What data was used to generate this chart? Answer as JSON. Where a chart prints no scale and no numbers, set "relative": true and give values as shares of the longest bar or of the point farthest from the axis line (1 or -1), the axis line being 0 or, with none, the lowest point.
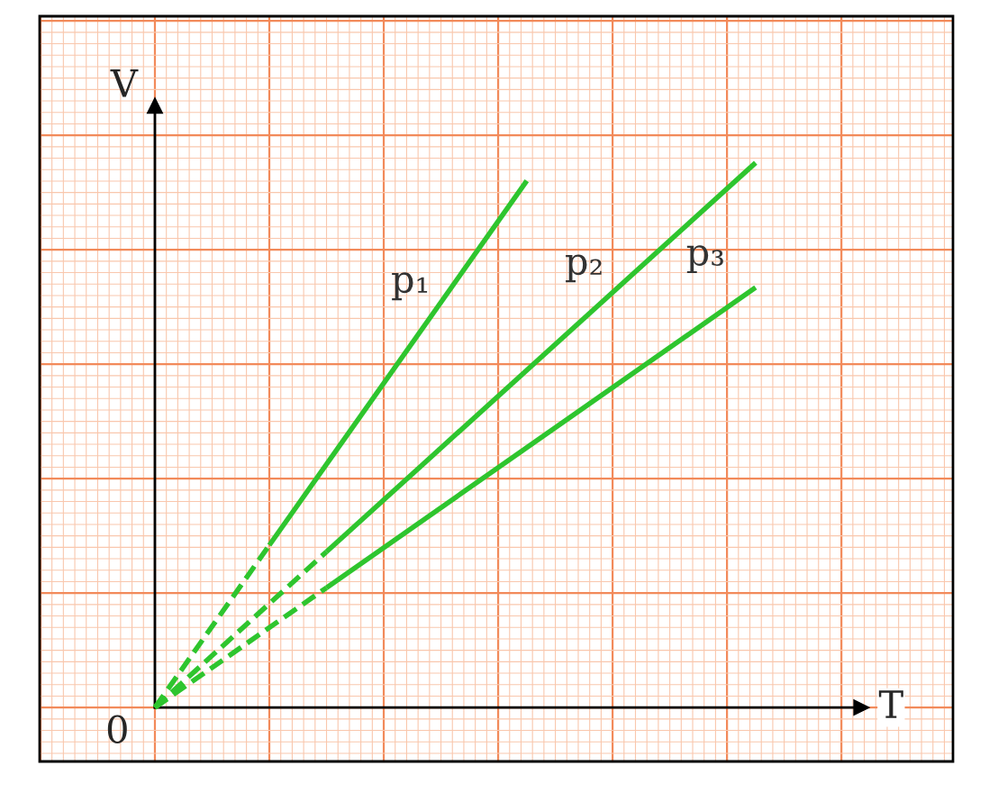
{
  "chart_data": {
    "type": "line",
    "relative": true,
    "xlabel": "T",
    "ylabel": "V",
    "grid": true,
    "legend": false,
    "annotations": [
      "0"
    ],
    "categories": [
      null,
      null,
      null,
      null,
      null,
      null,
      null,
      null,
      null,
      null,
      null,
      null,
      null,
      null,
      null,
      null,
      null,
      null,
      null,
      null,
      null,
      null
    ],
    "series": [
      {
        "color": "#2ec52e",
        "line_style": "dashed",
        "values": [
          0,
          null,
          null,
          null,
          0.298,
          null,
          null,
          null,
          null,
          null,
          null,
          null,
          null,
          null,
          null,
          null,
          null,
          null,
          null,
          null,
          null,
          null
        ]
      },
      {
        "name": "p₁",
        "color": "#2ec52e",
        "line_style": "solid",
        "values": [
          null,
          null,
          null,
          null,
          0.298,
          null,
          null,
          null,
          null,
          null,
          null,
          null,
          null,
          0.967,
          null,
          null,
          null,
          null,
          null,
          null,
          null,
          null
        ]
      },
      {
        "color": "#2ec52e",
        "line_style": "dashed",
        "values": [
          0,
          null,
          null,
          null,
          null,
          null,
          0.286,
          null,
          null,
          null,
          null,
          null,
          null,
          null,
          null,
          null,
          null,
          null,
          null,
          null,
          null,
          null
        ]
      },
      {
        "name": "p₂",
        "color": "#2ec52e",
        "line_style": "solid",
        "values": [
          null,
          null,
          null,
          null,
          null,
          null,
          0.286,
          null,
          null,
          null,
          null,
          null,
          null,
          null,
          null,
          null,
          null,
          null,
          null,
          null,
          null,
          1.0
        ]
      },
      {
        "color": "#2ec52e",
        "line_style": "dashed",
        "values": [
          0,
          null,
          null,
          null,
          null,
          null,
          0.22,
          null,
          null,
          null,
          null,
          null,
          null,
          null,
          null,
          null,
          null,
          null,
          null,
          null,
          null,
          null
        ]
      },
      {
        "name": "p₃",
        "color": "#2ec52e",
        "line_style": "solid",
        "values": [
          null,
          null,
          null,
          null,
          null,
          null,
          0.22,
          null,
          null,
          null,
          null,
          null,
          null,
          null,
          null,
          null,
          null,
          null,
          null,
          null,
          null,
          0.771
        ]
      }
    ]
  }
}
